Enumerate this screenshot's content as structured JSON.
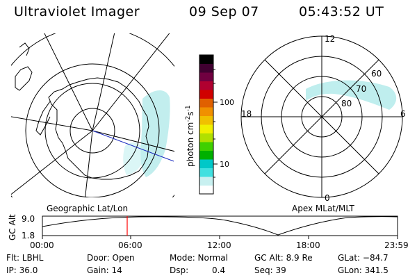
{
  "header": {
    "instrument": "Ultraviolet Imager",
    "date": "09 Sep 07",
    "time": "05:43:52 UT"
  },
  "left_map": {
    "caption": "Geographic Lat/Lon"
  },
  "right_map": {
    "caption": "Apex MLat/MLT",
    "mlt_labels": {
      "top": "12",
      "left": "18",
      "right": "6",
      "bottom": "0"
    },
    "mlat_labels": [
      "60",
      "70",
      "80"
    ]
  },
  "colorbar": {
    "unit_label": "photon cm",
    "unit_sup1": "-2",
    "unit_mid": "s",
    "unit_sup2": "-1",
    "ticks": [
      "100",
      "10"
    ],
    "colors": [
      "#ffffff",
      "#c8f0f0",
      "#40e0e0",
      "#00c8c8",
      "#00b000",
      "#40d000",
      "#b0e000",
      "#f0f000",
      "#f0c000",
      "#f09000",
      "#e06000",
      "#d00000",
      "#b00030",
      "#700040",
      "#400030",
      "#000000"
    ]
  },
  "altitude_plot": {
    "axis_label": "GC Alt",
    "y_max": "9.0",
    "y_min": "1.8",
    "x_ticks": [
      "00:00",
      "06:00",
      "12:00",
      "18:00",
      "23:59"
    ],
    "marker_color": "#ff0000"
  },
  "status": {
    "flt": "Flt: LBHL",
    "ip": "IP: 36.0",
    "door": "Door: Open",
    "gain": "Gain: 14",
    "mode": "Mode: Normal",
    "dsp_label": "Dsp:",
    "dsp_value": "0.4",
    "gc_alt": "GC Alt: 8.9 Re",
    "seq": "Seq: 39",
    "glat": "GLat: −84.7",
    "glon": "GLon: 341.5"
  }
}
